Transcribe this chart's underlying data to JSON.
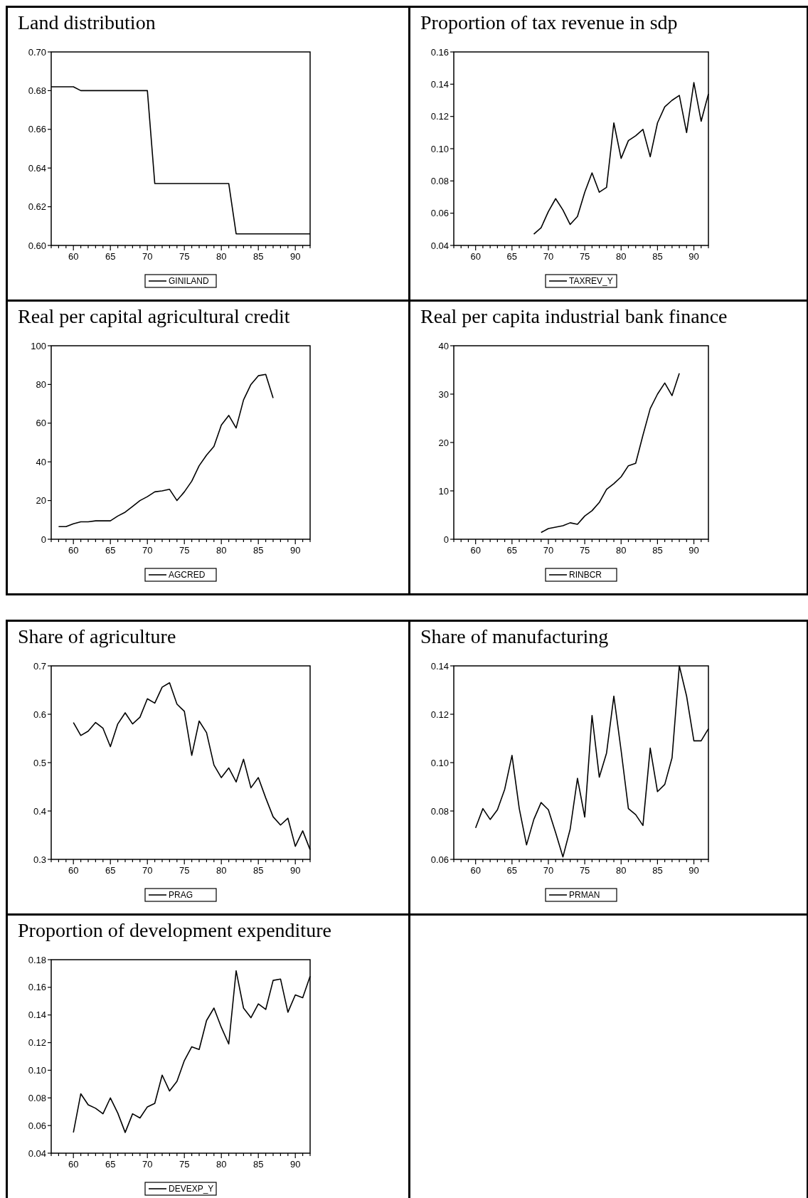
{
  "chart_data": [
    {
      "type": "line",
      "title": "Land distribution",
      "x": [
        57,
        58,
        59,
        60,
        61,
        62,
        63,
        64,
        65,
        66,
        67,
        68,
        69,
        70,
        71,
        72,
        73,
        74,
        75,
        76,
        77,
        78,
        79,
        80,
        81,
        82,
        83,
        84,
        85,
        86,
        87,
        88,
        89,
        90,
        91,
        92
      ],
      "series": [
        {
          "name": "GINILAND",
          "color": "#000000",
          "values": [
            0.682,
            0.682,
            0.682,
            0.682,
            0.68,
            0.68,
            0.68,
            0.68,
            0.68,
            0.68,
            0.68,
            0.68,
            0.68,
            0.68,
            0.632,
            0.632,
            0.632,
            0.632,
            0.632,
            0.632,
            0.632,
            0.632,
            0.632,
            0.632,
            0.632,
            0.606,
            0.606,
            0.606,
            0.606,
            0.606,
            0.606,
            0.606,
            0.606,
            0.606,
            0.606,
            0.606
          ]
        }
      ],
      "xlim": [
        57,
        92
      ],
      "ylim": [
        0.6,
        0.7
      ],
      "xticks": [
        {
          "value": 57,
          "label": null
        },
        {
          "value": 58,
          "label": null
        },
        {
          "value": 59,
          "label": null
        },
        60,
        {
          "value": 61,
          "label": null
        },
        {
          "value": 62,
          "label": null
        },
        {
          "value": 63,
          "label": null
        },
        {
          "value": 64,
          "label": null
        },
        65,
        {
          "value": 66,
          "label": null
        },
        {
          "value": 67,
          "label": null
        },
        {
          "value": 68,
          "label": null
        },
        {
          "value": 69,
          "label": null
        },
        70,
        {
          "value": 71,
          "label": null
        },
        {
          "value": 72,
          "label": null
        },
        {
          "value": 73,
          "label": null
        },
        {
          "value": 74,
          "label": null
        },
        75,
        {
          "value": 76,
          "label": null
        },
        {
          "value": 77,
          "label": null
        },
        {
          "value": 78,
          "label": null
        },
        {
          "value": 79,
          "label": null
        },
        80,
        {
          "value": 81,
          "label": null
        },
        {
          "value": 82,
          "label": null
        },
        {
          "value": 83,
          "label": null
        },
        {
          "value": 84,
          "label": null
        },
        85,
        {
          "value": 86,
          "label": null
        },
        {
          "value": 87,
          "label": null
        },
        {
          "value": 88,
          "label": null
        },
        {
          "value": 89,
          "label": null
        },
        90,
        {
          "value": 91,
          "label": null
        },
        {
          "value": 92,
          "label": null
        }
      ],
      "yticks": [
        {
          "value": 0.6,
          "label": "0.60"
        },
        0.62,
        0.64,
        0.66,
        0.68,
        {
          "value": 0.7,
          "label": "0.70"
        }
      ],
      "legend": "bottom",
      "grid": false
    },
    {
      "type": "line",
      "title": "Proportion of tax revenue in sdp",
      "x": [
        68,
        69,
        70,
        71,
        72,
        73,
        74,
        75,
        76,
        77,
        78,
        79,
        80,
        81,
        82,
        83,
        84,
        85,
        86,
        87,
        88,
        89,
        90,
        91,
        92
      ],
      "series": [
        {
          "name": "TAXREV_Y",
          "color": "#000000",
          "values": [
            0.047,
            0.051,
            0.061,
            0.069,
            0.062,
            0.053,
            0.058,
            0.073,
            0.085,
            0.073,
            0.076,
            0.116,
            0.094,
            0.105,
            0.108,
            0.112,
            0.095,
            0.116,
            0.126,
            0.13,
            0.133,
            0.11,
            0.141,
            0.117,
            0.134
          ]
        }
      ],
      "xlim": [
        57,
        92
      ],
      "ylim": [
        0.04,
        0.16
      ],
      "xticks": [
        {
          "value": 57,
          "label": null
        },
        {
          "value": 58,
          "label": null
        },
        {
          "value": 59,
          "label": null
        },
        60,
        {
          "value": 61,
          "label": null
        },
        {
          "value": 62,
          "label": null
        },
        {
          "value": 63,
          "label": null
        },
        {
          "value": 64,
          "label": null
        },
        65,
        {
          "value": 66,
          "label": null
        },
        {
          "value": 67,
          "label": null
        },
        {
          "value": 68,
          "label": null
        },
        {
          "value": 69,
          "label": null
        },
        70,
        {
          "value": 71,
          "label": null
        },
        {
          "value": 72,
          "label": null
        },
        {
          "value": 73,
          "label": null
        },
        {
          "value": 74,
          "label": null
        },
        75,
        {
          "value": 76,
          "label": null
        },
        {
          "value": 77,
          "label": null
        },
        {
          "value": 78,
          "label": null
        },
        {
          "value": 79,
          "label": null
        },
        80,
        {
          "value": 81,
          "label": null
        },
        {
          "value": 82,
          "label": null
        },
        {
          "value": 83,
          "label": null
        },
        {
          "value": 84,
          "label": null
        },
        85,
        {
          "value": 86,
          "label": null
        },
        {
          "value": 87,
          "label": null
        },
        {
          "value": 88,
          "label": null
        },
        {
          "value": 89,
          "label": null
        },
        90,
        {
          "value": 91,
          "label": null
        },
        {
          "value": 92,
          "label": null
        }
      ],
      "yticks": [
        0.04,
        0.06,
        0.08,
        {
          "value": 0.1,
          "label": "0.10"
        },
        0.12,
        0.14,
        0.16
      ],
      "legend": "bottom",
      "grid": false
    },
    {
      "type": "line",
      "title": "Real per capital agricultural credit",
      "x": [
        58,
        59,
        60,
        61,
        62,
        63,
        64,
        65,
        66,
        67,
        68,
        69,
        70,
        71,
        72,
        73,
        74,
        75,
        76,
        77,
        78,
        79,
        80,
        81,
        82,
        83,
        84,
        85,
        86,
        87
      ],
      "series": [
        {
          "name": "AGCRED",
          "color": "#000000",
          "values": [
            6.5,
            6.5,
            8,
            9,
            9,
            9.5,
            9.5,
            9.5,
            12,
            14,
            17,
            20,
            22,
            24.5,
            25,
            25.8,
            20,
            24.5,
            30,
            38,
            43.5,
            48,
            59,
            64,
            57.5,
            72,
            80,
            84.5,
            85.2,
            73
          ]
        }
      ],
      "xlim": [
        57,
        92
      ],
      "ylim": [
        0,
        100
      ],
      "xticks": [
        {
          "value": 57,
          "label": null
        },
        {
          "value": 58,
          "label": null
        },
        {
          "value": 59,
          "label": null
        },
        60,
        {
          "value": 61,
          "label": null
        },
        {
          "value": 62,
          "label": null
        },
        {
          "value": 63,
          "label": null
        },
        {
          "value": 64,
          "label": null
        },
        65,
        {
          "value": 66,
          "label": null
        },
        {
          "value": 67,
          "label": null
        },
        {
          "value": 68,
          "label": null
        },
        {
          "value": 69,
          "label": null
        },
        70,
        {
          "value": 71,
          "label": null
        },
        {
          "value": 72,
          "label": null
        },
        {
          "value": 73,
          "label": null
        },
        {
          "value": 74,
          "label": null
        },
        75,
        {
          "value": 76,
          "label": null
        },
        {
          "value": 77,
          "label": null
        },
        {
          "value": 78,
          "label": null
        },
        {
          "value": 79,
          "label": null
        },
        80,
        {
          "value": 81,
          "label": null
        },
        {
          "value": 82,
          "label": null
        },
        {
          "value": 83,
          "label": null
        },
        {
          "value": 84,
          "label": null
        },
        85,
        {
          "value": 86,
          "label": null
        },
        {
          "value": 87,
          "label": null
        },
        {
          "value": 88,
          "label": null
        },
        {
          "value": 89,
          "label": null
        },
        90,
        {
          "value": 91,
          "label": null
        },
        {
          "value": 92,
          "label": null
        }
      ],
      "yticks": [
        0,
        20,
        40,
        60,
        80,
        100
      ],
      "legend": "bottom",
      "grid": false
    },
    {
      "type": "line",
      "title": "Real per capita industrial bank finance",
      "x": [
        69,
        70,
        71,
        72,
        73,
        74,
        75,
        76,
        77,
        78,
        79,
        80,
        81,
        82,
        83,
        84,
        85,
        86,
        87,
        88
      ],
      "series": [
        {
          "name": "RINBCR",
          "color": "#000000",
          "values": [
            1.4,
            2.2,
            2.5,
            2.8,
            3.4,
            3.1,
            4.8,
            5.9,
            7.6,
            10.3,
            11.5,
            12.9,
            15.2,
            15.7,
            21.5,
            27,
            30,
            32.3,
            29.7,
            34.3
          ]
        }
      ],
      "xlim": [
        57,
        92
      ],
      "ylim": [
        0,
        40
      ],
      "xticks": [
        {
          "value": 57,
          "label": null
        },
        {
          "value": 58,
          "label": null
        },
        {
          "value": 59,
          "label": null
        },
        60,
        {
          "value": 61,
          "label": null
        },
        {
          "value": 62,
          "label": null
        },
        {
          "value": 63,
          "label": null
        },
        {
          "value": 64,
          "label": null
        },
        65,
        {
          "value": 66,
          "label": null
        },
        {
          "value": 67,
          "label": null
        },
        {
          "value": 68,
          "label": null
        },
        {
          "value": 69,
          "label": null
        },
        70,
        {
          "value": 71,
          "label": null
        },
        {
          "value": 72,
          "label": null
        },
        {
          "value": 73,
          "label": null
        },
        {
          "value": 74,
          "label": null
        },
        75,
        {
          "value": 76,
          "label": null
        },
        {
          "value": 77,
          "label": null
        },
        {
          "value": 78,
          "label": null
        },
        {
          "value": 79,
          "label": null
        },
        80,
        {
          "value": 81,
          "label": null
        },
        {
          "value": 82,
          "label": null
        },
        {
          "value": 83,
          "label": null
        },
        {
          "value": 84,
          "label": null
        },
        85,
        {
          "value": 86,
          "label": null
        },
        {
          "value": 87,
          "label": null
        },
        {
          "value": 88,
          "label": null
        },
        {
          "value": 89,
          "label": null
        },
        90,
        {
          "value": 91,
          "label": null
        },
        {
          "value": 92,
          "label": null
        }
      ],
      "yticks": [
        0,
        10,
        20,
        30,
        40
      ],
      "legend": "bottom",
      "grid": false
    },
    {
      "type": "line",
      "title": "Share of agriculture",
      "x": [
        60,
        61,
        62,
        63,
        64,
        65,
        66,
        67,
        68,
        69,
        70,
        71,
        72,
        73,
        74,
        75,
        76,
        77,
        78,
        79,
        80,
        81,
        82,
        83,
        84,
        85,
        86,
        87,
        88,
        89,
        90,
        91,
        92
      ],
      "series": [
        {
          "name": "PRAG",
          "color": "#000000",
          "values": [
            0.583,
            0.556,
            0.565,
            0.583,
            0.571,
            0.533,
            0.58,
            0.603,
            0.58,
            0.594,
            0.632,
            0.623,
            0.656,
            0.665,
            0.621,
            0.606,
            0.515,
            0.586,
            0.562,
            0.495,
            0.469,
            0.489,
            0.46,
            0.507,
            0.448,
            0.469,
            0.427,
            0.388,
            0.371,
            0.385,
            0.327,
            0.359,
            0.32
          ]
        }
      ],
      "xlim": [
        57,
        92
      ],
      "ylim": [
        0.3,
        0.7
      ],
      "xticks": [
        {
          "value": 57,
          "label": null
        },
        {
          "value": 58,
          "label": null
        },
        {
          "value": 59,
          "label": null
        },
        60,
        {
          "value": 61,
          "label": null
        },
        {
          "value": 62,
          "label": null
        },
        {
          "value": 63,
          "label": null
        },
        {
          "value": 64,
          "label": null
        },
        65,
        {
          "value": 66,
          "label": null
        },
        {
          "value": 67,
          "label": null
        },
        {
          "value": 68,
          "label": null
        },
        {
          "value": 69,
          "label": null
        },
        70,
        {
          "value": 71,
          "label": null
        },
        {
          "value": 72,
          "label": null
        },
        {
          "value": 73,
          "label": null
        },
        {
          "value": 74,
          "label": null
        },
        75,
        {
          "value": 76,
          "label": null
        },
        {
          "value": 77,
          "label": null
        },
        {
          "value": 78,
          "label": null
        },
        {
          "value": 79,
          "label": null
        },
        80,
        {
          "value": 81,
          "label": null
        },
        {
          "value": 82,
          "label": null
        },
        {
          "value": 83,
          "label": null
        },
        {
          "value": 84,
          "label": null
        },
        85,
        {
          "value": 86,
          "label": null
        },
        {
          "value": 87,
          "label": null
        },
        {
          "value": 88,
          "label": null
        },
        {
          "value": 89,
          "label": null
        },
        90,
        {
          "value": 91,
          "label": null
        },
        {
          "value": 92,
          "label": null
        }
      ],
      "yticks": [
        0.3,
        0.4,
        0.5,
        0.6,
        0.7
      ],
      "legend": "bottom",
      "grid": false
    },
    {
      "type": "line",
      "title": "Share of manufacturing",
      "x": [
        60,
        61,
        62,
        63,
        64,
        65,
        66,
        67,
        68,
        69,
        70,
        71,
        72,
        73,
        74,
        75,
        76,
        77,
        78,
        79,
        80,
        81,
        82,
        83,
        84,
        85,
        86,
        87,
        88,
        89,
        90,
        91,
        92
      ],
      "series": [
        {
          "name": "PRMAN",
          "color": "#000000",
          "values": [
            0.073,
            0.081,
            0.0765,
            0.0805,
            0.089,
            0.103,
            0.081,
            0.066,
            0.0765,
            0.0835,
            0.0805,
            0.071,
            0.061,
            0.0725,
            0.0935,
            0.0775,
            0.1195,
            0.094,
            0.104,
            0.1275,
            0.105,
            0.081,
            0.0785,
            0.074,
            0.106,
            0.088,
            0.091,
            0.102,
            0.14,
            0.1275,
            0.109,
            0.109,
            0.114
          ]
        }
      ],
      "xlim": [
        57,
        92
      ],
      "ylim": [
        0.06,
        0.14
      ],
      "xticks": [
        {
          "value": 57,
          "label": null
        },
        {
          "value": 58,
          "label": null
        },
        {
          "value": 59,
          "label": null
        },
        60,
        {
          "value": 61,
          "label": null
        },
        {
          "value": 62,
          "label": null
        },
        {
          "value": 63,
          "label": null
        },
        {
          "value": 64,
          "label": null
        },
        65,
        {
          "value": 66,
          "label": null
        },
        {
          "value": 67,
          "label": null
        },
        {
          "value": 68,
          "label": null
        },
        {
          "value": 69,
          "label": null
        },
        70,
        {
          "value": 71,
          "label": null
        },
        {
          "value": 72,
          "label": null
        },
        {
          "value": 73,
          "label": null
        },
        {
          "value": 74,
          "label": null
        },
        75,
        {
          "value": 76,
          "label": null
        },
        {
          "value": 77,
          "label": null
        },
        {
          "value": 78,
          "label": null
        },
        {
          "value": 79,
          "label": null
        },
        80,
        {
          "value": 81,
          "label": null
        },
        {
          "value": 82,
          "label": null
        },
        {
          "value": 83,
          "label": null
        },
        {
          "value": 84,
          "label": null
        },
        85,
        {
          "value": 86,
          "label": null
        },
        {
          "value": 87,
          "label": null
        },
        {
          "value": 88,
          "label": null
        },
        {
          "value": 89,
          "label": null
        },
        90,
        {
          "value": 91,
          "label": null
        },
        {
          "value": 92,
          "label": null
        }
      ],
      "yticks": [
        0.06,
        0.08,
        {
          "value": 0.1,
          "label": "0.10"
        },
        0.12,
        0.14
      ],
      "legend": "bottom",
      "grid": false
    },
    {
      "type": "line",
      "title": "Proportion of development expenditure",
      "x": [
        60,
        61,
        62,
        63,
        64,
        65,
        66,
        67,
        68,
        69,
        70,
        71,
        72,
        73,
        74,
        75,
        76,
        77,
        78,
        79,
        80,
        81,
        82,
        83,
        84,
        85,
        86,
        87,
        88,
        89,
        90,
        91,
        92
      ],
      "series": [
        {
          "name": "DEVEXP_Y",
          "color": "#000000",
          "values": [
            0.055,
            0.083,
            0.075,
            0.0725,
            0.0685,
            0.08,
            0.069,
            0.055,
            0.0685,
            0.0655,
            0.0735,
            0.076,
            0.0965,
            0.085,
            0.092,
            0.107,
            0.117,
            0.115,
            0.136,
            0.145,
            0.131,
            0.119,
            0.172,
            0.145,
            0.138,
            0.148,
            0.144,
            0.165,
            0.166,
            0.142,
            0.1545,
            0.1525,
            0.168
          ]
        }
      ],
      "xlim": [
        57,
        92
      ],
      "ylim": [
        0.04,
        0.18
      ],
      "xticks": [
        {
          "value": 57,
          "label": null
        },
        {
          "value": 58,
          "label": null
        },
        {
          "value": 59,
          "label": null
        },
        60,
        {
          "value": 61,
          "label": null
        },
        {
          "value": 62,
          "label": null
        },
        {
          "value": 63,
          "label": null
        },
        {
          "value": 64,
          "label": null
        },
        65,
        {
          "value": 66,
          "label": null
        },
        {
          "value": 67,
          "label": null
        },
        {
          "value": 68,
          "label": null
        },
        {
          "value": 69,
          "label": null
        },
        70,
        {
          "value": 71,
          "label": null
        },
        {
          "value": 72,
          "label": null
        },
        {
          "value": 73,
          "label": null
        },
        {
          "value": 74,
          "label": null
        },
        75,
        {
          "value": 76,
          "label": null
        },
        {
          "value": 77,
          "label": null
        },
        {
          "value": 78,
          "label": null
        },
        {
          "value": 79,
          "label": null
        },
        80,
        {
          "value": 81,
          "label": null
        },
        {
          "value": 82,
          "label": null
        },
        {
          "value": 83,
          "label": null
        },
        {
          "value": 84,
          "label": null
        },
        85,
        {
          "value": 86,
          "label": null
        },
        {
          "value": 87,
          "label": null
        },
        {
          "value": 88,
          "label": null
        },
        {
          "value": 89,
          "label": null
        },
        90,
        {
          "value": 91,
          "label": null
        },
        {
          "value": 92,
          "label": null
        }
      ],
      "yticks": [
        0.04,
        0.06,
        0.08,
        {
          "value": 0.1,
          "label": "0.10"
        },
        0.12,
        0.14,
        0.16,
        0.18
      ],
      "legend": "bottom",
      "grid": false
    }
  ]
}
